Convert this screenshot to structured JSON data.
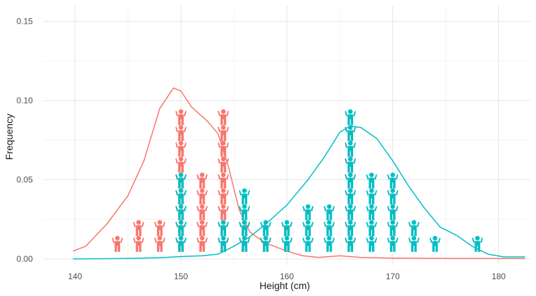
{
  "chart_data": {
    "type": "scatter",
    "title": "",
    "xlabel": "Height (cm)",
    "ylabel": "Frequency",
    "xlim": [
      137,
      183
    ],
    "ylim": [
      -0.004,
      0.16
    ],
    "x_ticks": [
      140,
      150,
      160,
      170,
      180
    ],
    "y_ticks": [
      0.0,
      0.05,
      0.1,
      0.15
    ],
    "y_tick_labels": [
      "0.00",
      "0.05",
      "0.10",
      "0.15"
    ],
    "grid": true,
    "legend": "none",
    "unit_value": 0.01,
    "series": [
      {
        "color": "#F8766D",
        "icon": "person-icon",
        "counts": [
          [
            144,
            1
          ],
          [
            146,
            2
          ],
          [
            148,
            2
          ],
          [
            150,
            9
          ],
          [
            152,
            5
          ],
          [
            154,
            9
          ],
          [
            156,
            2
          ],
          [
            158,
            1
          ],
          [
            166,
            8
          ]
        ],
        "density": [
          [
            139.8,
            0.005
          ],
          [
            141,
            0.008
          ],
          [
            143,
            0.022
          ],
          [
            145,
            0.04
          ],
          [
            146.5,
            0.062
          ],
          [
            148,
            0.095
          ],
          [
            149.3,
            0.108
          ],
          [
            150,
            0.106
          ],
          [
            151,
            0.096
          ],
          [
            152.5,
            0.087
          ],
          [
            153.5,
            0.079
          ],
          [
            154.5,
            0.058
          ],
          [
            155.5,
            0.031
          ],
          [
            156.5,
            0.017
          ],
          [
            158,
            0.01
          ],
          [
            160,
            0.005
          ],
          [
            161.5,
            0.002
          ],
          [
            163,
            0.001
          ],
          [
            165,
            0.002
          ],
          [
            167,
            0.001
          ],
          [
            170,
            0.0005
          ],
          [
            175,
            0.0003
          ],
          [
            180,
            0.0003
          ],
          [
            182.5,
            0.0003
          ]
        ]
      },
      {
        "color": "#00BFC4",
        "icon": "person-icon",
        "counts": [
          [
            150,
            5
          ],
          [
            154,
            2
          ],
          [
            156,
            4
          ],
          [
            158,
            2
          ],
          [
            160,
            2
          ],
          [
            162,
            3
          ],
          [
            164,
            3
          ],
          [
            166,
            9
          ],
          [
            168,
            5
          ],
          [
            170,
            5
          ],
          [
            172,
            2
          ],
          [
            174,
            1
          ],
          [
            178,
            1
          ]
        ],
        "density": [
          [
            139.8,
            0.0
          ],
          [
            145,
            0.0003
          ],
          [
            148,
            0.0008
          ],
          [
            150,
            0.0015
          ],
          [
            152,
            0.002
          ],
          [
            153.5,
            0.003
          ],
          [
            155,
            0.008
          ],
          [
            156.5,
            0.014
          ],
          [
            158,
            0.022
          ],
          [
            160,
            0.034
          ],
          [
            162,
            0.05
          ],
          [
            163.5,
            0.064
          ],
          [
            165,
            0.08
          ],
          [
            166,
            0.084
          ],
          [
            167,
            0.083
          ],
          [
            168.5,
            0.076
          ],
          [
            170,
            0.062
          ],
          [
            171.5,
            0.046
          ],
          [
            173,
            0.032
          ],
          [
            174.5,
            0.02
          ],
          [
            176,
            0.015
          ],
          [
            177.5,
            0.008
          ],
          [
            179,
            0.003
          ],
          [
            180.5,
            0.0013
          ],
          [
            182.5,
            0.0013
          ]
        ]
      }
    ]
  }
}
